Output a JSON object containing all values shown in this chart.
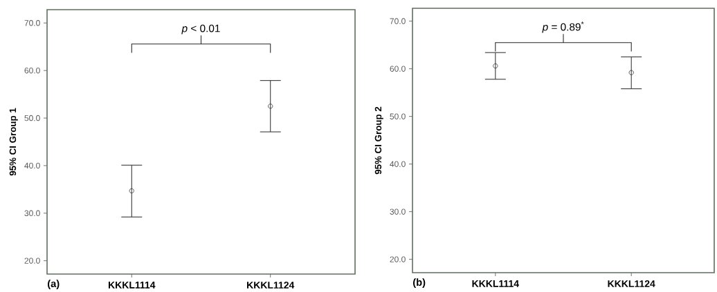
{
  "chart_data": [
    {
      "type": "scatter",
      "ylabel": "95% CI   Group 1",
      "categories": [
        "KKKL1114",
        "KKKL1124"
      ],
      "values": [
        34.7,
        52.5
      ],
      "errors": [
        [
          29.2,
          40.1
        ],
        [
          47.1,
          57.9
        ]
      ],
      "color": "#333333",
      "marker": "circle",
      "ylim": [
        17.2,
        72.8
      ],
      "yticks": [
        {
          "value": 20,
          "label": "20.0"
        },
        {
          "value": 30,
          "label": "30.0"
        },
        {
          "value": 40,
          "label": "40.0"
        },
        {
          "value": 50,
          "label": "50.0"
        },
        {
          "value": 60,
          "label": "60.0"
        },
        {
          "value": 70,
          "label": "70.0"
        }
      ],
      "annotations": [
        "*p* < 0.01",
        "(a)"
      ]
    },
    {
      "type": "scatter",
      "ylabel": "95% CI   Group 2",
      "categories": [
        "KKKL1114",
        "KKKL1124"
      ],
      "values": [
        60.6,
        59.2
      ],
      "errors": [
        [
          57.8,
          63.4
        ],
        [
          55.8,
          62.5
        ]
      ],
      "color": "#333333",
      "marker": "circle",
      "ylim": [
        17.2,
        72.7
      ],
      "yticks": [
        {
          "value": 20,
          "label": "20.0"
        },
        {
          "value": 30,
          "label": "30.0"
        },
        {
          "value": 40,
          "label": "40.0"
        },
        {
          "value": 50,
          "label": "50.0"
        },
        {
          "value": 60,
          "label": "60.0"
        },
        {
          "value": 70,
          "label": "70.0"
        }
      ],
      "annotations": [
        "*p* = 0.89$^{*}$",
        "(b)"
      ]
    }
  ]
}
